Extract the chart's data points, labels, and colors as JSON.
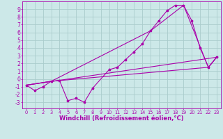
{
  "background_color": "#cce8e8",
  "grid_color": "#aacccc",
  "line_color": "#aa00aa",
  "marker": "*",
  "xlabel": "Windchill (Refroidissement éolien,°C)",
  "xlabel_fontsize": 6.0,
  "xtick_fontsize": 4.8,
  "ytick_fontsize": 5.5,
  "xlim": [
    -0.5,
    23.5
  ],
  "ylim": [
    -3.8,
    10.0
  ],
  "yticks": [
    -3,
    -2,
    -1,
    0,
    1,
    2,
    3,
    4,
    5,
    6,
    7,
    8,
    9
  ],
  "xticks": [
    0,
    1,
    2,
    3,
    4,
    5,
    6,
    7,
    8,
    9,
    10,
    11,
    12,
    13,
    14,
    15,
    16,
    17,
    18,
    19,
    20,
    21,
    22,
    23
  ],
  "line1_x": [
    0,
    1,
    2,
    3,
    4,
    5,
    6,
    7,
    8,
    10,
    11,
    12,
    13,
    14,
    15,
    16,
    17,
    18,
    19,
    20,
    21,
    22,
    23
  ],
  "line1_y": [
    -0.8,
    -1.5,
    -1.0,
    -0.3,
    -0.2,
    -2.8,
    -2.5,
    -3.0,
    -1.2,
    1.2,
    1.5,
    2.5,
    3.5,
    4.5,
    6.2,
    7.5,
    8.8,
    9.5,
    9.5,
    7.5,
    4.0,
    1.5,
    2.8
  ],
  "line2_x": [
    0,
    3,
    22,
    23
  ],
  "line2_y": [
    -0.8,
    -0.3,
    1.5,
    2.8
  ],
  "line3_x": [
    0,
    3,
    15,
    19,
    22,
    23
  ],
  "line3_y": [
    -0.8,
    -0.3,
    6.2,
    9.5,
    1.5,
    2.8
  ],
  "line4_x": [
    0,
    23
  ],
  "line4_y": [
    -0.8,
    2.8
  ]
}
